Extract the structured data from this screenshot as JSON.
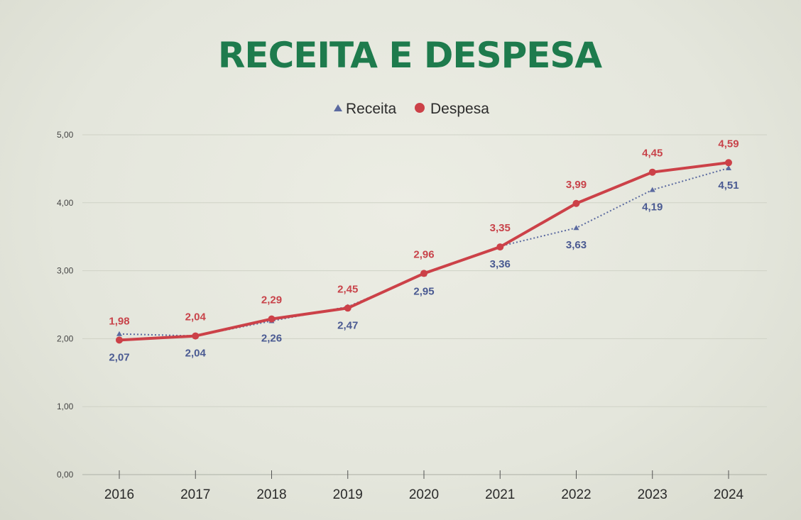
{
  "chart_data": {
    "type": "line",
    "title": "RECEITA E DESPESA",
    "xlabel": "",
    "ylabel": "",
    "categories": [
      "2016",
      "2017",
      "2018",
      "2019",
      "2020",
      "2021",
      "2022",
      "2023",
      "2024"
    ],
    "ylim": [
      0,
      5
    ],
    "yticks": [
      0,
      1,
      2,
      3,
      4,
      5
    ],
    "ytick_labels": [
      "0,00",
      "1,00",
      "2,00",
      "3,00",
      "4,00",
      "5,00"
    ],
    "grid": true,
    "legend_position": "top-center",
    "series": [
      {
        "name": "Receita",
        "marker": "triangle",
        "line_style": "dotted",
        "color": "#5b6aa0",
        "label_color": "#4a5a92",
        "values": [
          2.07,
          2.04,
          2.26,
          2.47,
          2.95,
          3.36,
          3.63,
          4.19,
          4.51
        ],
        "labels": [
          "2,07",
          "2,04",
          "2,26",
          "2,47",
          "2,95",
          "3,36",
          "3,63",
          "4,19",
          "4,51"
        ]
      },
      {
        "name": "Despesa",
        "marker": "circle",
        "line_style": "solid",
        "color": "#cc4148",
        "label_color": "#c8434a",
        "values": [
          1.98,
          2.04,
          2.29,
          2.45,
          2.96,
          3.35,
          3.99,
          4.45,
          4.59
        ],
        "labels": [
          "1,98",
          "2,04",
          "2,29",
          "2,45",
          "2,96",
          "3,35",
          "3,99",
          "4,45",
          "4,59"
        ]
      }
    ]
  }
}
